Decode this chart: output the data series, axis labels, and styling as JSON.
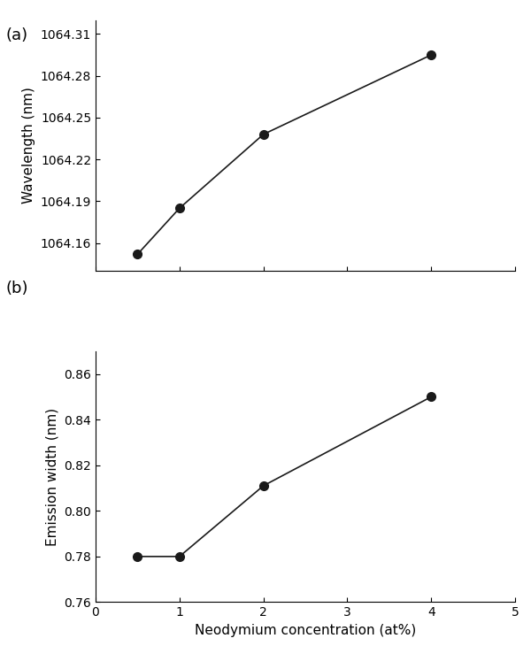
{
  "plot_a": {
    "x": [
      0.5,
      1.0,
      2.0,
      4.0
    ],
    "y": [
      1064.152,
      1064.185,
      1064.238,
      1064.295
    ],
    "ylabel": "Wavelength (nm)",
    "ylim": [
      1064.14,
      1064.32
    ],
    "yticks": [
      1064.16,
      1064.19,
      1064.22,
      1064.25,
      1064.28,
      1064.31
    ],
    "label": "(a)"
  },
  "plot_b": {
    "x": [
      0.5,
      1.0,
      2.0,
      4.0
    ],
    "y": [
      0.78,
      0.78,
      0.811,
      0.85
    ],
    "ylabel": "Emission width (nm)",
    "ylim": [
      0.76,
      0.87
    ],
    "yticks": [
      0.76,
      0.78,
      0.8,
      0.82,
      0.84,
      0.86
    ],
    "label": "(b)"
  },
  "xlabel": "Neodymium concentration (at%)",
  "xlim": [
    0,
    5
  ],
  "xticks": [
    0,
    1,
    2,
    3,
    4,
    5
  ],
  "line_color": "#1a1a1a",
  "marker_color": "#1a1a1a",
  "marker": "o",
  "marker_size": 7,
  "line_width": 1.2,
  "background_color": "#ffffff",
  "label_fontsize": 11,
  "tick_fontsize": 10,
  "panel_label_fontsize": 13
}
